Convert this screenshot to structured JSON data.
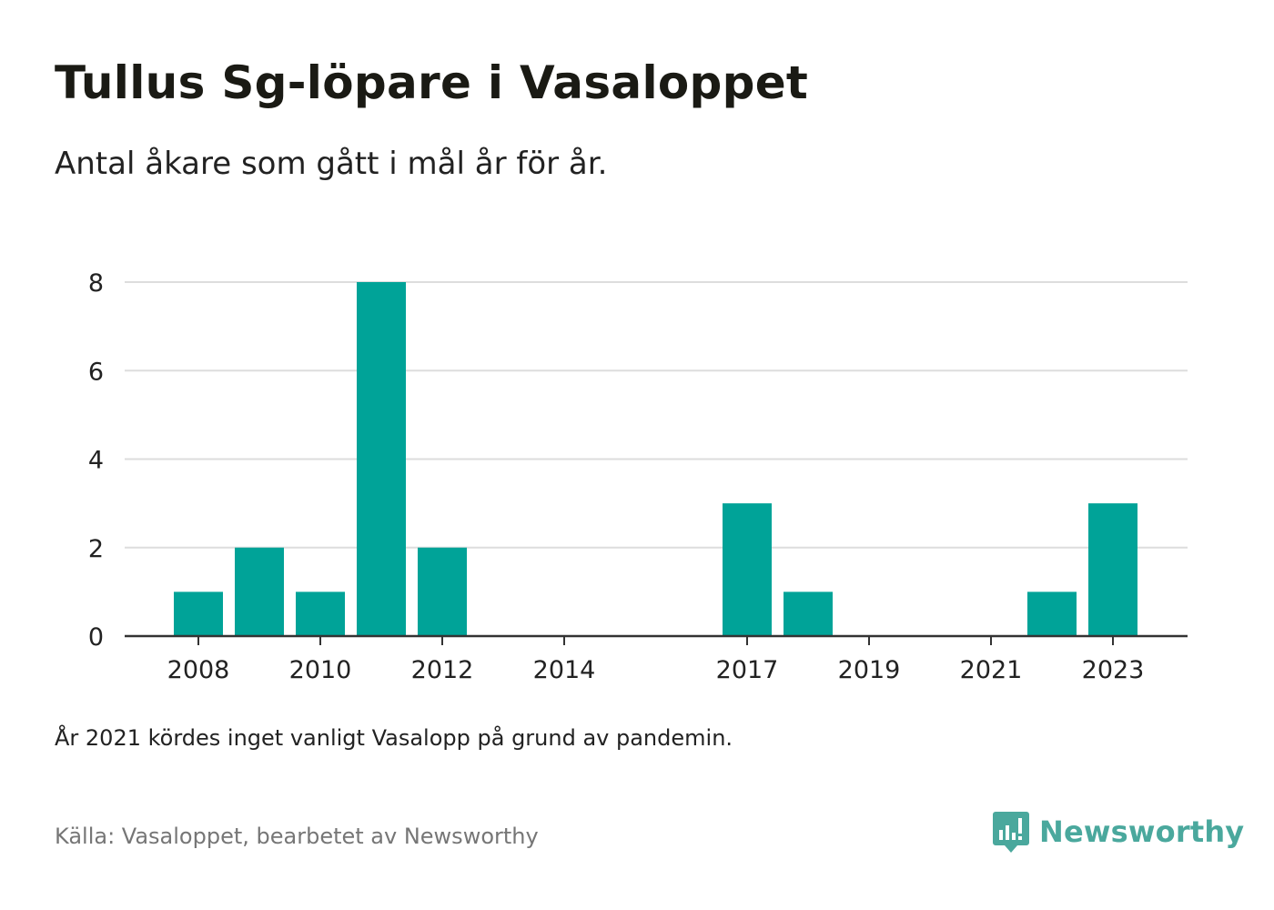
{
  "title": "Tullus Sg-löpare i Vasaloppet",
  "subtitle": "Antal åkare som gått i mål år för år.",
  "note": "År 2021 kördes inget vanligt Vasalopp på grund av pandemin.",
  "source": "Källa: Vasaloppet, bearbetet av Newsworthy",
  "logo": {
    "text": "Newsworthy",
    "icon": "newsworthy-logo-icon"
  },
  "colors": {
    "bar": "#00a398",
    "grid": "#dddddd",
    "axis": "#333333",
    "logo": "#4aa89d"
  },
  "chart_data": {
    "type": "bar",
    "categories": [
      "2008",
      "2009",
      "2010",
      "2011",
      "2012",
      "2013",
      "2014",
      "2015",
      "2017",
      "2018",
      "2019",
      "2020",
      "2021",
      "2022",
      "2023"
    ],
    "values": [
      1,
      2,
      1,
      8,
      2,
      0,
      0,
      0,
      3,
      1,
      0,
      0,
      0,
      1,
      3
    ],
    "xticks": [
      "2008",
      "2010",
      "2012",
      "2014",
      "2017",
      "2019",
      "2021",
      "2023"
    ],
    "yticks": [
      0,
      2,
      4,
      6,
      8
    ],
    "ylim": [
      0,
      8
    ],
    "grid": true,
    "title": "Tullus Sg-löpare i Vasaloppet",
    "xlabel": "",
    "ylabel": ""
  }
}
